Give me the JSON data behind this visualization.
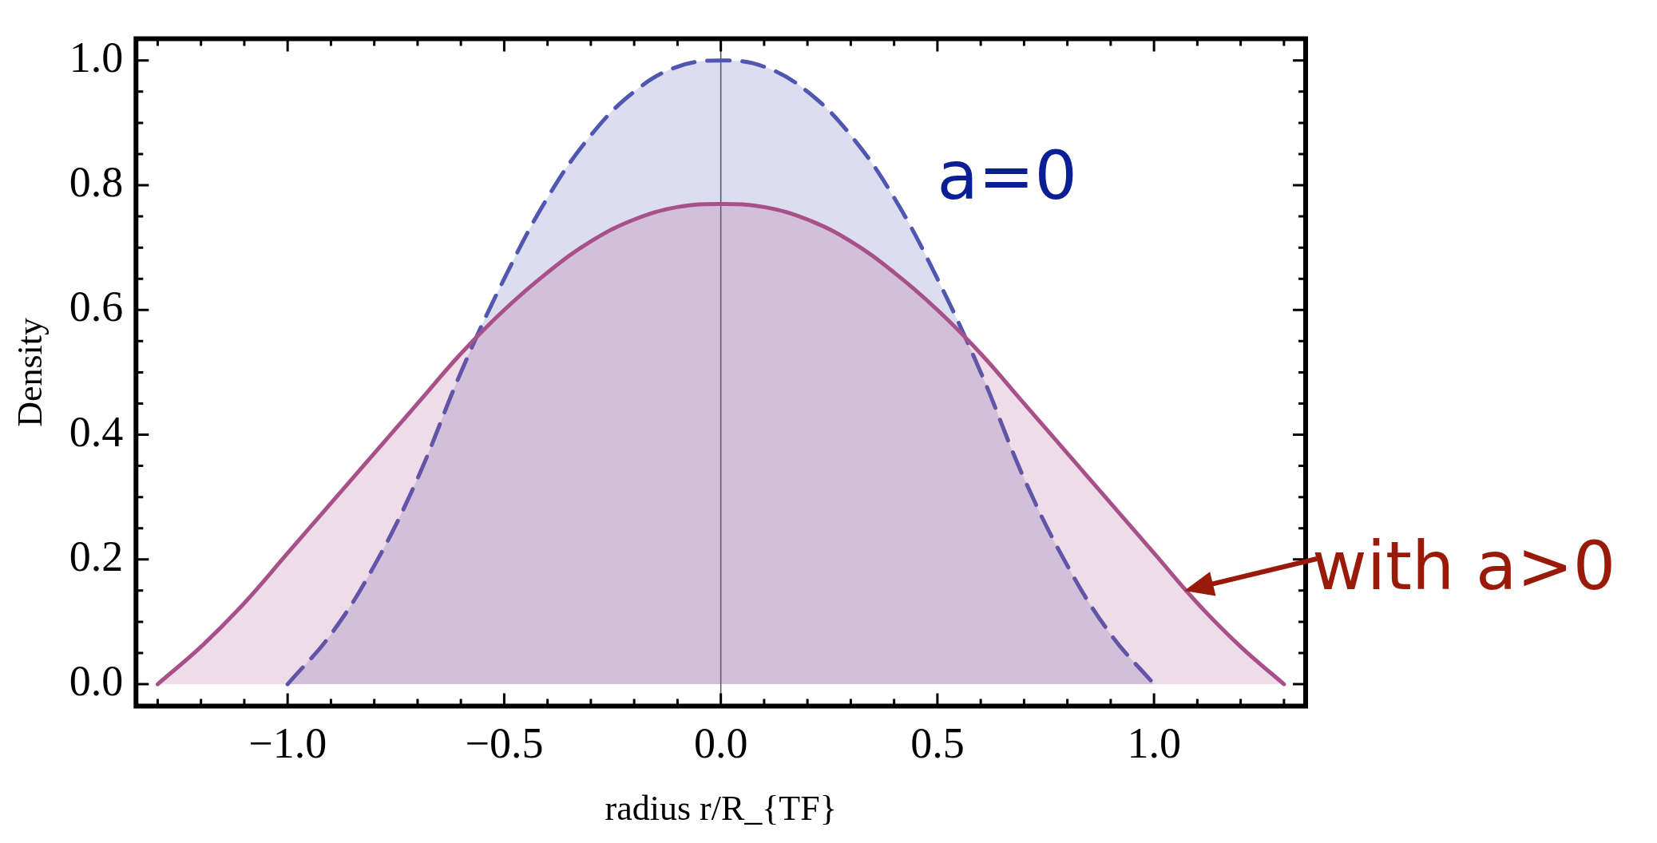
{
  "chart_data": {
    "type": "area",
    "xlabel": "radius r/R_{TF}",
    "ylabel": "Density",
    "xlim": [
      -1.35,
      1.35
    ],
    "ylim": [
      -0.035,
      1.035
    ],
    "xticks": [
      {
        "value": -1.3,
        "label": null
      },
      {
        "value": -1.2,
        "label": null
      },
      {
        "value": -1.1,
        "label": null
      },
      {
        "value": -1,
        "label": "−1.0"
      },
      {
        "value": -0.9,
        "label": null
      },
      {
        "value": -0.8,
        "label": null
      },
      {
        "value": -0.7,
        "label": null
      },
      {
        "value": -0.6,
        "label": null
      },
      {
        "value": -0.5,
        "label": "−0.5"
      },
      {
        "value": -0.4,
        "label": null
      },
      {
        "value": -0.3,
        "label": null
      },
      {
        "value": -0.2,
        "label": null
      },
      {
        "value": -0.1,
        "label": null
      },
      {
        "value": 0,
        "label": "0.0"
      },
      {
        "value": 0.1,
        "label": null
      },
      {
        "value": 0.2,
        "label": null
      },
      {
        "value": 0.3,
        "label": null
      },
      {
        "value": 0.4,
        "label": null
      },
      {
        "value": 0.5,
        "label": "0.5"
      },
      {
        "value": 0.6,
        "label": null
      },
      {
        "value": 0.7,
        "label": null
      },
      {
        "value": 0.8,
        "label": null
      },
      {
        "value": 0.9,
        "label": null
      },
      {
        "value": 1,
        "label": "1.0"
      },
      {
        "value": 1.1,
        "label": null
      },
      {
        "value": 1.2,
        "label": null
      },
      {
        "value": 1.3,
        "label": null
      }
    ],
    "yticks": [
      {
        "value": 0,
        "label": "0.0"
      },
      {
        "value": 0.05,
        "label": null
      },
      {
        "value": 0.1,
        "label": null
      },
      {
        "value": 0.15,
        "label": null
      },
      {
        "value": 0.2,
        "label": "0.2"
      },
      {
        "value": 0.25,
        "label": null
      },
      {
        "value": 0.3,
        "label": null
      },
      {
        "value": 0.35,
        "label": null
      },
      {
        "value": 0.4,
        "label": "0.4"
      },
      {
        "value": 0.45,
        "label": null
      },
      {
        "value": 0.5,
        "label": null
      },
      {
        "value": 0.55,
        "label": null
      },
      {
        "value": 0.6,
        "label": "0.6"
      },
      {
        "value": 0.65,
        "label": null
      },
      {
        "value": 0.7,
        "label": null
      },
      {
        "value": 0.75,
        "label": null
      },
      {
        "value": 0.8,
        "label": "0.8"
      },
      {
        "value": 0.85,
        "label": null
      },
      {
        "value": 0.9,
        "label": null
      },
      {
        "value": 0.95,
        "label": null
      },
      {
        "value": 1,
        "label": "1.0"
      }
    ],
    "grid": false,
    "legend": false,
    "marker": "none",
    "series": [
      {
        "color": "#a8508a",
        "line_style": "solid",
        "x": [
          -1.3,
          -1.2,
          -1.1,
          -1,
          -0.9,
          -0.8,
          -0.7,
          -0.6,
          -0.5,
          -0.4,
          -0.3,
          -0.2,
          -0.1,
          0,
          0.1,
          0.2,
          0.3,
          0.4,
          0.5,
          0.6,
          0.7,
          0.8,
          0.9,
          1,
          1.1,
          1.2,
          1.3
        ],
        "values": [
          0,
          0.06,
          0.13,
          0.21,
          0.29,
          0.37,
          0.45,
          0.53,
          0.6,
          0.66,
          0.71,
          0.745,
          0.765,
          0.77,
          0.765,
          0.745,
          0.71,
          0.66,
          0.6,
          0.53,
          0.45,
          0.37,
          0.29,
          0.21,
          0.13,
          0.06,
          0
        ]
      },
      {
        "color": "#5057b0",
        "line_style": "dashed",
        "x": [
          -1,
          -0.9,
          -0.8,
          -0.7,
          -0.6,
          -0.5,
          -0.4,
          -0.3,
          -0.2,
          -0.1,
          0,
          0.1,
          0.2,
          0.3,
          0.4,
          0.5,
          0.6,
          0.7,
          0.8,
          0.9,
          1
        ],
        "values": [
          0,
          0.08,
          0.19,
          0.33,
          0.5,
          0.65,
          0.78,
          0.88,
          0.95,
          0.99,
          1,
          0.99,
          0.95,
          0.88,
          0.78,
          0.65,
          0.5,
          0.33,
          0.19,
          0.08,
          0
        ]
      }
    ],
    "ref_lines": [
      {
        "axis": "x",
        "value": 0,
        "color": "#555555"
      }
    ],
    "annotations": [
      "a=0",
      {
        "text": "with a>0",
        "x": 1.07,
        "y": 0.15
      }
    ]
  }
}
